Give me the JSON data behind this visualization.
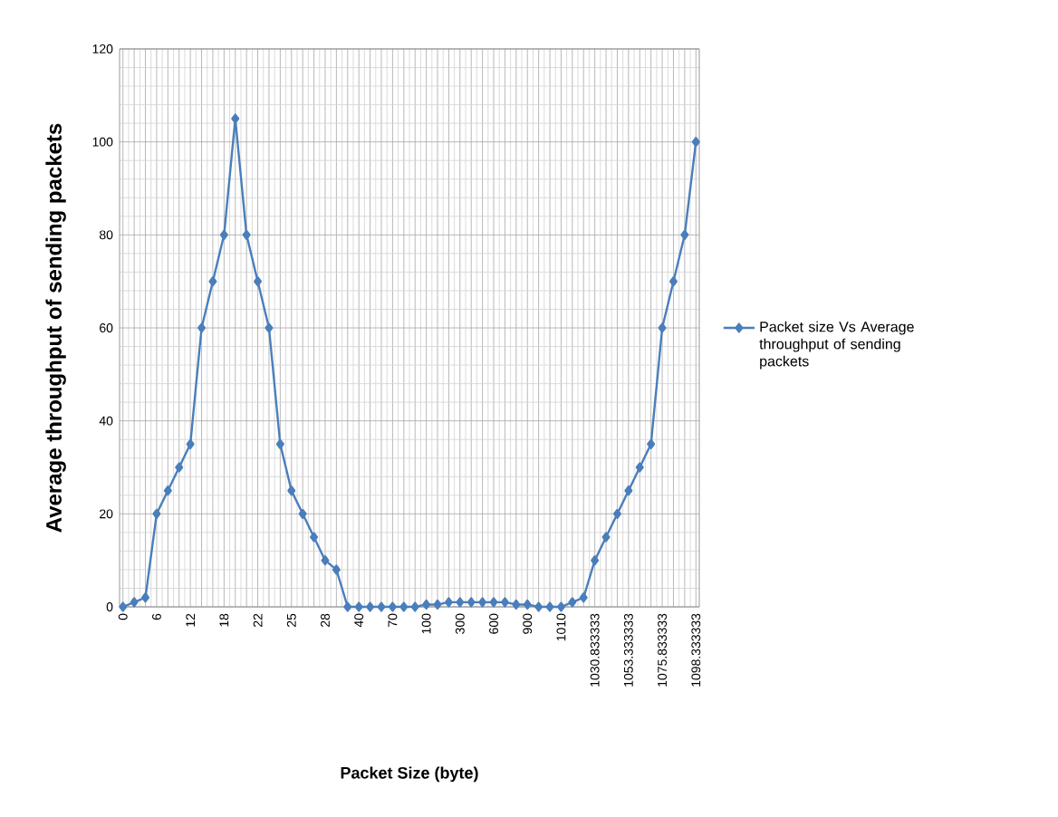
{
  "chart_data": {
    "type": "line",
    "xlabel": "Packet Size (byte)",
    "ylabel": "Average throughput of sending  packets",
    "categories": [
      "0",
      null,
      null,
      "6",
      null,
      null,
      "12",
      null,
      null,
      "18",
      null,
      null,
      "22",
      null,
      null,
      "25",
      null,
      null,
      "28",
      null,
      null,
      "40",
      null,
      null,
      "70",
      null,
      null,
      "100",
      null,
      null,
      "300",
      null,
      null,
      "600",
      null,
      null,
      "900",
      null,
      null,
      "1010",
      null,
      null,
      "1030.833333",
      null,
      null,
      "1053.333333",
      null,
      null,
      "1075.833333",
      null,
      null,
      "1098.333333"
    ],
    "series": [
      {
        "name": "Packet size Vs Average throughput of sending  packets",
        "color": "#4a7ebb",
        "values": [
          0,
          1,
          2,
          20,
          25,
          30,
          35,
          60,
          70,
          80,
          105,
          80,
          70,
          60,
          35,
          25,
          20,
          15,
          10,
          8,
          0,
          0,
          0,
          0,
          0,
          0,
          0,
          0.5,
          0.5,
          1,
          1,
          1,
          1,
          1,
          1,
          0.5,
          0.5,
          0,
          0,
          0,
          1,
          2,
          10,
          15,
          20,
          25,
          30,
          35,
          60,
          70,
          80,
          100
        ]
      }
    ],
    "ylim": [
      0,
      120
    ],
    "yticks": [
      0,
      20,
      40,
      60,
      80,
      100,
      120
    ],
    "grid": true,
    "legend": "right",
    "marker": "diamond",
    "line_style": "solid"
  }
}
